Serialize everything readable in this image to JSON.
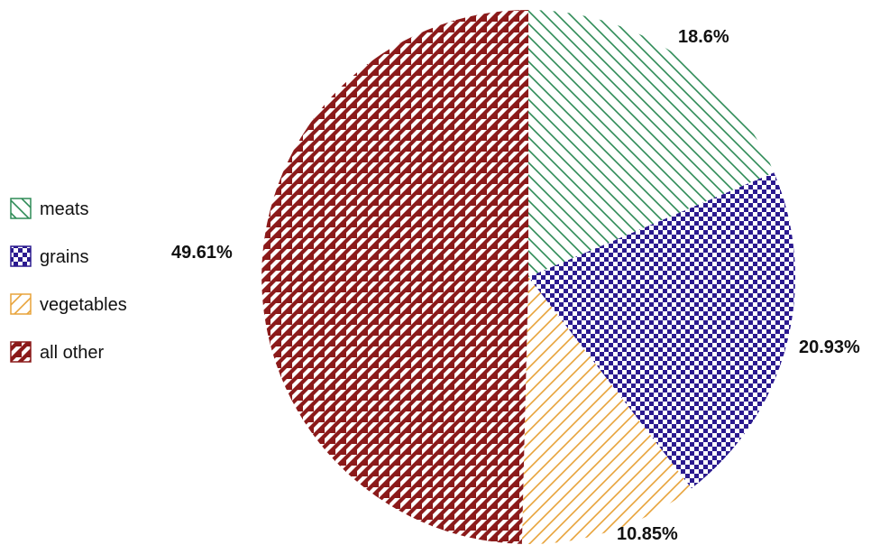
{
  "chart_data": {
    "type": "pie",
    "title": "",
    "start_angle": "12 o'clock, clockwise",
    "slices": [
      {
        "name": "meats",
        "value": 18.6,
        "label": "18.6%",
        "color": "#2e8b57",
        "pattern": "diagonal-lines-down"
      },
      {
        "name": "grains",
        "value": 20.93,
        "label": "20.93%",
        "color": "#2b1a8f",
        "pattern": "checkerboard"
      },
      {
        "name": "vegetables",
        "value": 10.85,
        "label": "10.85%",
        "color": "#e8a33a",
        "pattern": "diagonal-lines-up"
      },
      {
        "name": "all other",
        "value": 49.61,
        "label": "49.61%",
        "color": "#8b1a1a",
        "pattern": "triangles"
      }
    ],
    "legend_position": "left"
  }
}
